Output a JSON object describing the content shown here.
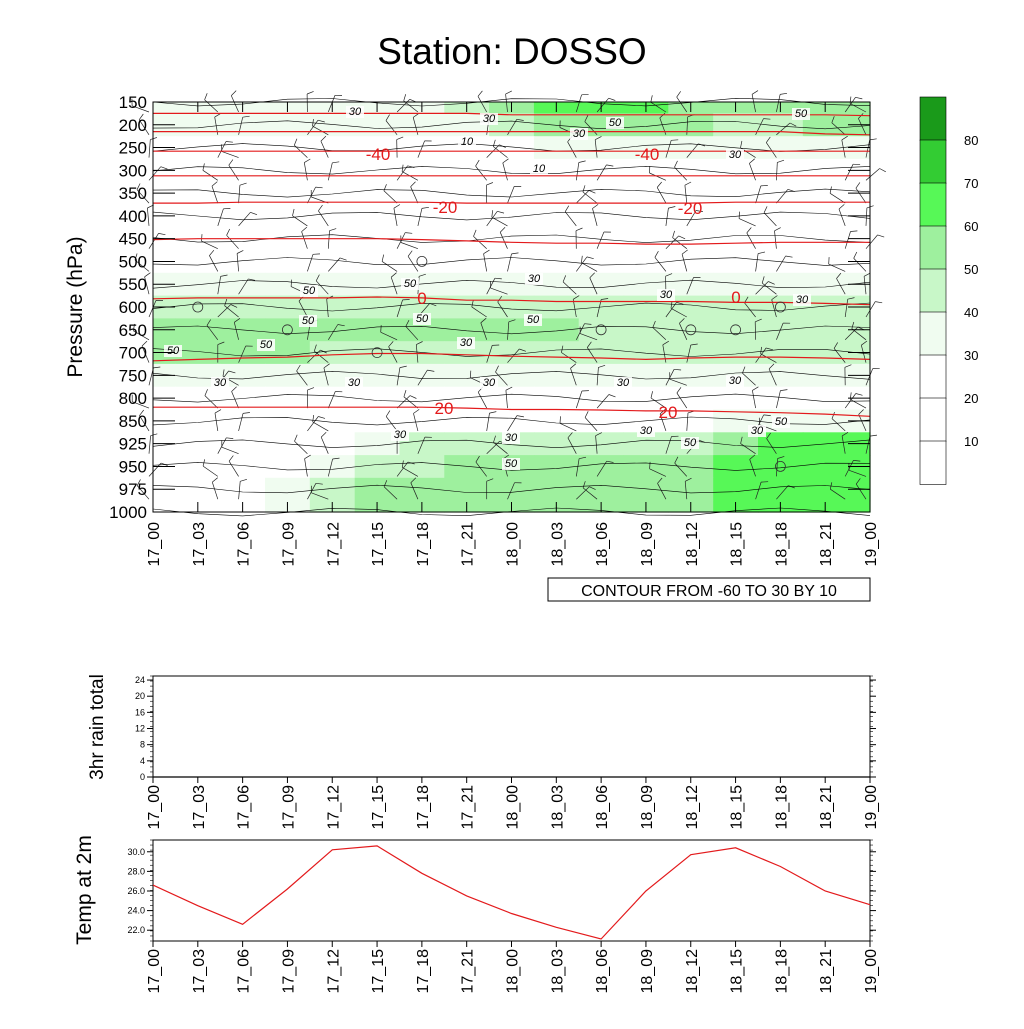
{
  "title": "Station: DOSSO",
  "colors": {
    "axis": "#000000",
    "isotherm": "#e31a1c",
    "rh_contour": "#000000",
    "rain_line": "#000000",
    "temp_line": "#e31a1c",
    "fill_levels": [
      "#ffffff",
      "#ffffff",
      "#ffffff",
      "#f0fcf0",
      "#c8f7c8",
      "#9ef09e",
      "#57f857",
      "#33cc33",
      "#1a9a1a"
    ]
  },
  "time_axis": {
    "ticks": [
      "17_00",
      "17_03",
      "17_06",
      "17_09",
      "17_12",
      "17_15",
      "17_18",
      "17_21",
      "18_00",
      "18_03",
      "18_06",
      "18_09",
      "18_12",
      "18_15",
      "18_18",
      "18_21",
      "19_00"
    ]
  },
  "chart_data": [
    {
      "type": "heatmap",
      "name": "rh_and_temperature_cross_section",
      "title": "Station: DOSSO",
      "ylabel": "Pressure (hPa)",
      "xlabel": "",
      "pressure_levels": [
        150,
        200,
        250,
        300,
        350,
        400,
        450,
        500,
        550,
        600,
        650,
        700,
        750,
        800,
        850,
        925,
        950,
        975,
        1000
      ],
      "ylim": [
        1000,
        150
      ],
      "x": [
        "17_00",
        "17_03",
        "17_06",
        "17_09",
        "17_12",
        "17_15",
        "17_18",
        "17_21",
        "18_00",
        "18_03",
        "18_06",
        "18_09",
        "18_12",
        "18_15",
        "18_18",
        "18_21",
        "19_00"
      ],
      "contour_info": "CONTOUR FROM -60 TO 30 BY 10",
      "colorbar": {
        "levels": [
          10,
          20,
          30,
          40,
          50,
          60,
          70,
          80
        ],
        "labels": [
          "10",
          "20",
          "30",
          "40",
          "50",
          "60",
          "70",
          "80"
        ]
      },
      "rh_field": [
        [
          30,
          30,
          30,
          30,
          30,
          30,
          30,
          40,
          50,
          60,
          60,
          60,
          50,
          50,
          50,
          50,
          50
        ],
        [
          30,
          30,
          30,
          30,
          30,
          30,
          30,
          30,
          40,
          50,
          50,
          50,
          50,
          40,
          40,
          50,
          50
        ],
        [
          20,
          20,
          20,
          20,
          20,
          20,
          20,
          20,
          20,
          30,
          30,
          30,
          30,
          30,
          30,
          30,
          30
        ],
        [
          10,
          10,
          10,
          10,
          10,
          10,
          10,
          10,
          10,
          20,
          20,
          20,
          20,
          20,
          20,
          20,
          20
        ],
        [
          10,
          10,
          10,
          10,
          10,
          10,
          10,
          10,
          10,
          10,
          10,
          10,
          10,
          10,
          10,
          10,
          10
        ],
        [
          20,
          20,
          20,
          20,
          20,
          20,
          20,
          20,
          20,
          20,
          20,
          20,
          20,
          20,
          20,
          20,
          20
        ],
        [
          20,
          20,
          20,
          20,
          20,
          20,
          20,
          20,
          20,
          20,
          20,
          20,
          20,
          20,
          20,
          20,
          20
        ],
        [
          20,
          20,
          20,
          20,
          20,
          20,
          20,
          20,
          20,
          20,
          20,
          20,
          20,
          20,
          20,
          20,
          20
        ],
        [
          30,
          30,
          30,
          30,
          30,
          30,
          30,
          30,
          30,
          30,
          30,
          30,
          30,
          30,
          30,
          30,
          30
        ],
        [
          40,
          40,
          40,
          40,
          40,
          40,
          40,
          45,
          45,
          40,
          40,
          40,
          40,
          40,
          40,
          40,
          40
        ],
        [
          50,
          55,
          55,
          50,
          50,
          50,
          50,
          55,
          55,
          50,
          45,
          45,
          45,
          45,
          45,
          45,
          45
        ],
        [
          50,
          50,
          50,
          50,
          45,
          45,
          45,
          45,
          45,
          40,
          40,
          40,
          40,
          40,
          40,
          40,
          40
        ],
        [
          30,
          30,
          30,
          30,
          30,
          30,
          30,
          30,
          30,
          30,
          30,
          30,
          30,
          30,
          30,
          30,
          30
        ],
        [
          20,
          20,
          20,
          20,
          20,
          20,
          20,
          20,
          20,
          20,
          20,
          20,
          20,
          20,
          20,
          20,
          20
        ],
        [
          20,
          20,
          20,
          20,
          20,
          20,
          20,
          20,
          20,
          20,
          20,
          20,
          20,
          30,
          30,
          30,
          30
        ],
        [
          20,
          20,
          20,
          20,
          20,
          30,
          40,
          40,
          40,
          40,
          40,
          40,
          40,
          55,
          60,
          60,
          60
        ],
        [
          20,
          20,
          20,
          20,
          30,
          40,
          45,
          50,
          50,
          50,
          50,
          50,
          55,
          60,
          60,
          60,
          60
        ],
        [
          20,
          20,
          20,
          30,
          40,
          50,
          55,
          55,
          55,
          55,
          55,
          55,
          55,
          60,
          60,
          60,
          60
        ],
        [
          20,
          20,
          20,
          30,
          40,
          50,
          55,
          55,
          55,
          55,
          55,
          55,
          55,
          60,
          60,
          60,
          60
        ]
      ],
      "rh_contour_labels": [
        "30",
        "30",
        "50",
        "50",
        "30",
        "10",
        "10",
        "30",
        "50",
        "50",
        "30",
        "30",
        "30",
        "50",
        "50",
        "50",
        "50",
        "50",
        "30",
        "30",
        "30",
        "30",
        "30",
        "30",
        "30",
        "30",
        "30",
        "50",
        "50",
        "50",
        "30"
      ],
      "isotherms": [
        {
          "value": -60,
          "pressure": [
            175,
            175,
            175,
            175,
            175,
            175,
            175,
            175,
            178,
            178,
            178,
            178,
            178,
            178,
            178,
            178,
            180
          ]
        },
        {
          "value": -50,
          "pressure": [
            215,
            215,
            215,
            215,
            215,
            215,
            215,
            215,
            215,
            215,
            215,
            215,
            215,
            215,
            215,
            220,
            222
          ]
        },
        {
          "value": -40,
          "pressure": [
            258,
            258,
            258,
            258,
            258,
            258,
            258,
            258,
            258,
            258,
            258,
            258,
            258,
            258,
            258,
            258,
            258
          ]
        },
        {
          "value": -30,
          "pressure": [
            312,
            312,
            312,
            312,
            312,
            312,
            312,
            312,
            312,
            312,
            312,
            312,
            312,
            312,
            312,
            312,
            312
          ]
        },
        {
          "value": -20,
          "pressure": [
            372,
            372,
            370,
            370,
            370,
            370,
            370,
            372,
            372,
            372,
            372,
            372,
            372,
            370,
            370,
            370,
            370
          ]
        },
        {
          "value": -10,
          "pressure": [
            452,
            450,
            450,
            450,
            450,
            450,
            452,
            455,
            458,
            460,
            460,
            462,
            462,
            460,
            458,
            458,
            458
          ]
        },
        {
          "value": 0,
          "pressure": [
            582,
            580,
            580,
            580,
            580,
            578,
            580,
            585,
            585,
            588,
            588,
            588,
            588,
            590,
            590,
            592,
            595
          ]
        },
        {
          "value": 10,
          "pressure": [
            718,
            715,
            712,
            710,
            705,
            702,
            702,
            705,
            708,
            710,
            712,
            715,
            712,
            710,
            710,
            712,
            715
          ]
        },
        {
          "value": 20,
          "pressure": [
            820,
            820,
            820,
            820,
            820,
            820,
            820,
            822,
            825,
            825,
            826,
            828,
            828,
            830,
            832,
            835,
            840
          ]
        }
      ],
      "isotherm_labels": [
        "-40",
        "-40",
        "-20",
        "-20",
        "0",
        "0",
        "20",
        "20"
      ],
      "circles": [
        {
          "x": "17_03",
          "p": 600
        },
        {
          "x": "17_09",
          "p": 650
        },
        {
          "x": "17_15",
          "p": 700
        },
        {
          "x": "17_18",
          "p": 500
        },
        {
          "x": "18_06",
          "p": 650
        },
        {
          "x": "18_12",
          "p": 650
        },
        {
          "x": "18_15",
          "p": 650
        },
        {
          "x": "18_18",
          "p": 600
        },
        {
          "x": "18_18",
          "p": 950
        }
      ]
    },
    {
      "type": "line",
      "name": "rain_3hr",
      "ylabel": "3hr rain total",
      "x": [
        "17_00",
        "17_03",
        "17_06",
        "17_09",
        "17_12",
        "17_15",
        "17_18",
        "17_21",
        "18_00",
        "18_03",
        "18_06",
        "18_09",
        "18_12",
        "18_15",
        "18_18",
        "18_21",
        "19_00"
      ],
      "values": [
        0,
        0,
        0,
        0,
        0,
        0,
        0,
        0,
        0,
        0,
        0,
        0,
        0,
        0,
        0,
        0,
        0
      ],
      "ylim": [
        0,
        25
      ],
      "yticks": [
        0,
        4,
        8,
        12,
        16,
        20,
        24
      ],
      "ytick_labels": [
        "0",
        "4",
        "8",
        "12",
        "16",
        "20",
        "24"
      ]
    },
    {
      "type": "line",
      "name": "temp_2m",
      "ylabel": "Temp at 2m",
      "x": [
        "17_00",
        "17_03",
        "17_06",
        "17_09",
        "17_12",
        "17_15",
        "17_18",
        "17_21",
        "18_00",
        "18_03",
        "18_06",
        "18_09",
        "18_12",
        "18_15",
        "18_18",
        "18_21",
        "19_00"
      ],
      "values": [
        26.6,
        24.5,
        22.6,
        26.2,
        30.2,
        30.6,
        27.8,
        25.5,
        23.7,
        22.3,
        21.1,
        26.0,
        29.7,
        30.4,
        28.5,
        26.0,
        24.6
      ],
      "ylim": [
        20.9,
        31.2
      ],
      "yticks": [
        22,
        24,
        26,
        28,
        30
      ],
      "ytick_labels": [
        "22.0",
        "24.0",
        "26.0",
        "28.0",
        "30.0"
      ]
    }
  ]
}
